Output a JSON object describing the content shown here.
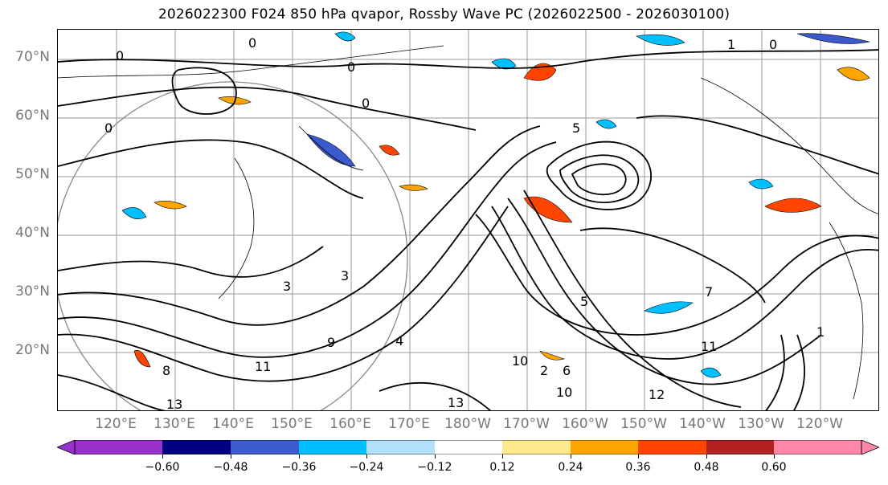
{
  "title": "2026022300 F024 850 hPa qvapor, Rossby Wave PC (2026022500 - 2026030100)",
  "map": {
    "lat_labels": [
      "70°N",
      "60°N",
      "50°N",
      "40°N",
      "30°N",
      "20°N"
    ],
    "lon_labels": [
      "120°E",
      "130°E",
      "140°E",
      "150°E",
      "160°E",
      "170°E",
      "180°W",
      "170°W",
      "160°W",
      "150°W",
      "140°W",
      "130°W",
      "120°W"
    ],
    "contour_labels": [
      "0",
      "0",
      "0",
      "0",
      "0",
      "0",
      "1",
      "1",
      "2",
      "3",
      "3",
      "4",
      "5",
      "5",
      "6",
      "7",
      "8",
      "9",
      "10",
      "10",
      "11",
      "11",
      "12",
      "13",
      "13"
    ]
  },
  "colorbar": {
    "ticks": [
      "−0.60",
      "−0.48",
      "−0.36",
      "−0.24",
      "−0.12",
      "0.12",
      "0.24",
      "0.36",
      "0.48",
      "0.60"
    ],
    "colors": [
      "#9932cc",
      "#000080",
      "#3a5acd",
      "#00bfff",
      "#b0e0fa",
      "#ffffff",
      "#ffe98a",
      "#ffa500",
      "#ff4500",
      "#b22222",
      "#ff88aa"
    ],
    "under_color": "#9932cc",
    "over_color": "#ff88aa"
  }
}
